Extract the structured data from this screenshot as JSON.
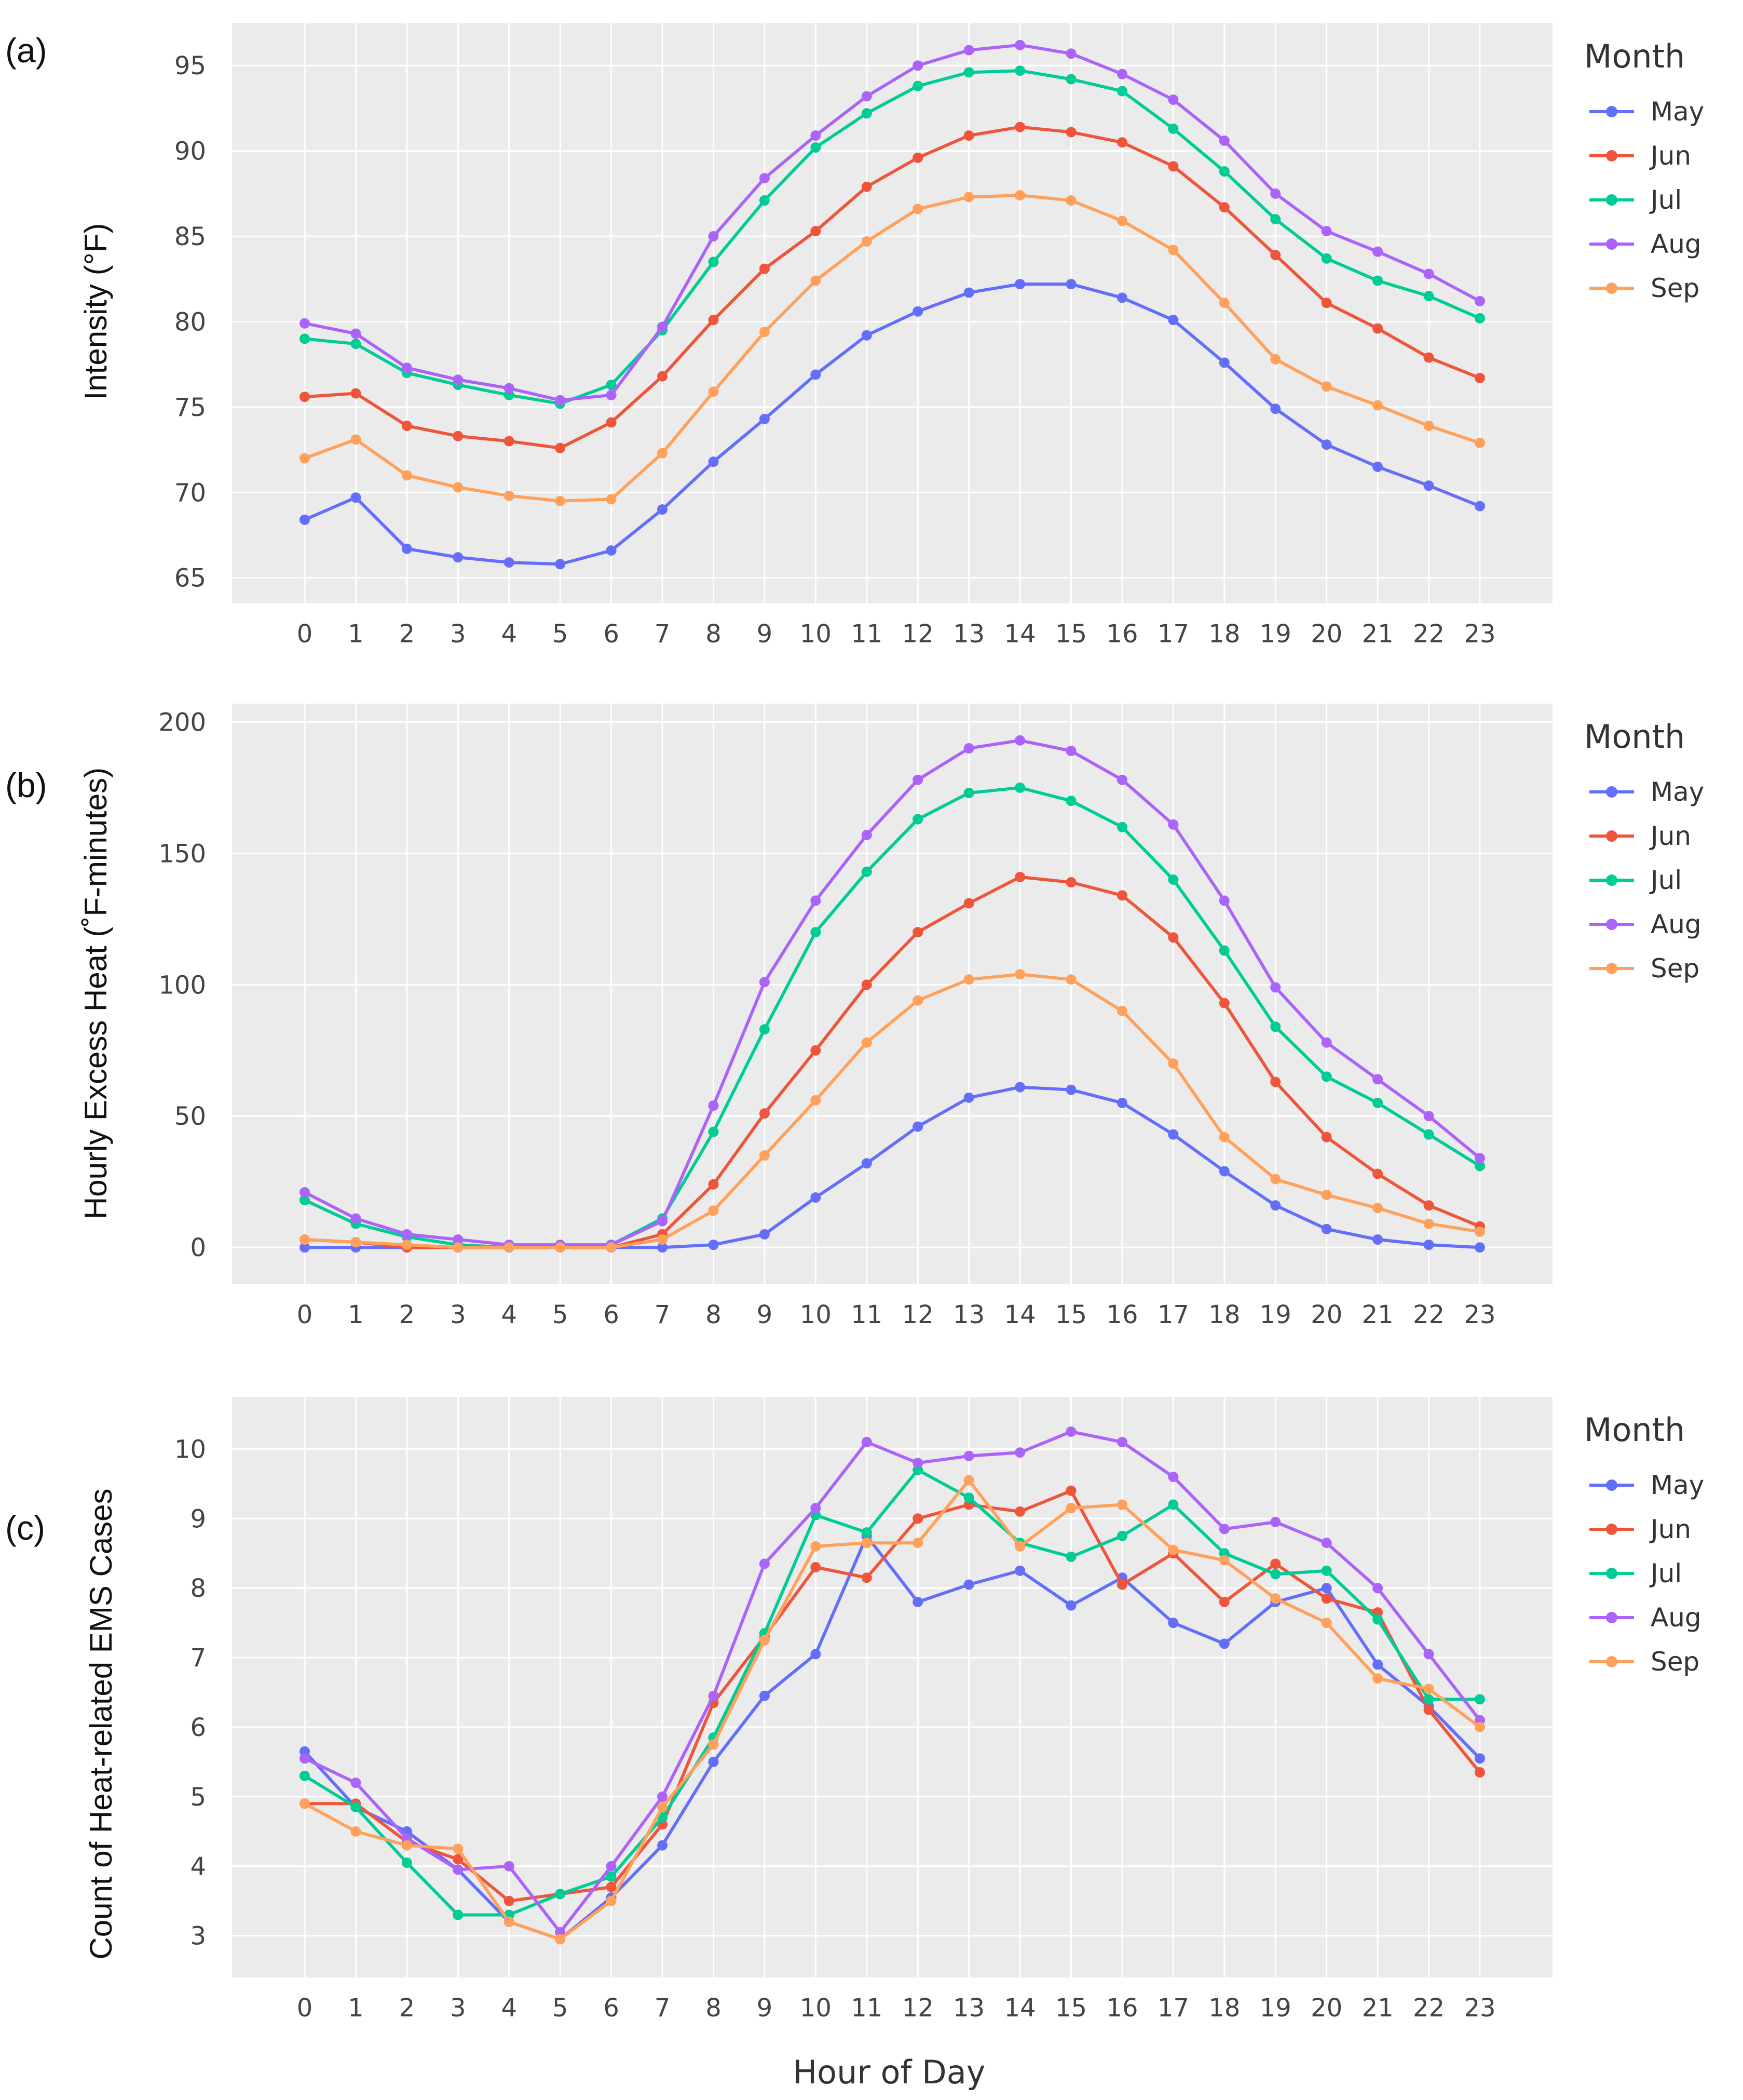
{
  "figure": {
    "xlabel": "Hour of Day",
    "series_colors": {
      "May": "#636efa",
      "Jun": "#ef553b",
      "Jul": "#00cc96",
      "Aug": "#ab63fa",
      "Sep": "#ffa15a"
    }
  },
  "chart_data": [
    {
      "panel_label": "(a)",
      "type": "line",
      "title": "",
      "xlabel": "",
      "ylabel": "Intensity (°F)",
      "x": [
        0,
        1,
        2,
        3,
        4,
        5,
        6,
        7,
        8,
        9,
        10,
        11,
        12,
        13,
        14,
        15,
        16,
        17,
        18,
        19,
        20,
        21,
        22,
        23
      ],
      "ylim": [
        63.5,
        97.5
      ],
      "yticks": [
        65,
        70,
        75,
        80,
        85,
        90,
        95
      ],
      "legend_title": "Month",
      "legend_position": "right",
      "series": [
        {
          "name": "May",
          "color": "#636efa",
          "values": [
            68.4,
            69.7,
            66.7,
            66.2,
            65.9,
            65.8,
            66.6,
            69.0,
            71.8,
            74.3,
            76.9,
            79.2,
            80.6,
            81.7,
            82.2,
            82.2,
            81.4,
            80.1,
            77.6,
            74.9,
            72.8,
            71.5,
            70.4,
            69.2
          ]
        },
        {
          "name": "Jun",
          "color": "#ef553b",
          "values": [
            75.6,
            75.8,
            73.9,
            73.3,
            73.0,
            72.6,
            74.1,
            76.8,
            80.1,
            83.1,
            85.3,
            87.9,
            89.6,
            90.9,
            91.4,
            91.1,
            90.5,
            89.1,
            86.7,
            83.9,
            81.1,
            79.6,
            77.9,
            76.7
          ]
        },
        {
          "name": "Jul",
          "color": "#00cc96",
          "values": [
            79.0,
            78.7,
            77.0,
            76.3,
            75.7,
            75.2,
            76.3,
            79.5,
            83.5,
            87.1,
            90.2,
            92.2,
            93.8,
            94.6,
            94.7,
            94.2,
            93.5,
            91.3,
            88.8,
            86.0,
            83.7,
            82.4,
            81.5,
            80.2
          ]
        },
        {
          "name": "Aug",
          "color": "#ab63fa",
          "values": [
            79.9,
            79.3,
            77.3,
            76.6,
            76.1,
            75.4,
            75.7,
            79.7,
            85.0,
            88.4,
            90.9,
            93.2,
            95.0,
            95.9,
            96.2,
            95.7,
            94.5,
            93.0,
            90.6,
            87.5,
            85.3,
            84.1,
            82.8,
            81.2
          ]
        },
        {
          "name": "Sep",
          "color": "#ffa15a",
          "values": [
            72.0,
            73.1,
            71.0,
            70.3,
            69.8,
            69.5,
            69.6,
            72.3,
            75.9,
            79.4,
            82.4,
            84.7,
            86.6,
            87.3,
            87.4,
            87.1,
            85.9,
            84.2,
            81.1,
            77.8,
            76.2,
            75.1,
            73.9,
            72.9
          ]
        }
      ]
    },
    {
      "panel_label": "(b)",
      "type": "line",
      "title": "",
      "xlabel": "",
      "ylabel": "Hourly Excess Heat (˚F-minutes)",
      "x": [
        0,
        1,
        2,
        3,
        4,
        5,
        6,
        7,
        8,
        9,
        10,
        11,
        12,
        13,
        14,
        15,
        16,
        17,
        18,
        19,
        20,
        21,
        22,
        23
      ],
      "ylim": [
        -14,
        207
      ],
      "yticks": [
        0,
        50,
        100,
        150,
        200
      ],
      "legend_title": "Month",
      "legend_position": "right",
      "series": [
        {
          "name": "May",
          "color": "#636efa",
          "values": [
            0,
            0,
            0,
            0,
            0,
            0,
            0,
            0,
            1,
            5,
            19,
            32,
            46,
            57,
            61,
            60,
            55,
            43,
            29,
            16,
            7,
            3,
            1,
            0
          ]
        },
        {
          "name": "Jun",
          "color": "#ef553b",
          "values": [
            3,
            2,
            0,
            0,
            0,
            0,
            0,
            5,
            24,
            51,
            75,
            100,
            120,
            131,
            141,
            139,
            134,
            118,
            93,
            63,
            42,
            28,
            16,
            8
          ]
        },
        {
          "name": "Jul",
          "color": "#00cc96",
          "values": [
            18,
            9,
            4,
            1,
            0,
            0,
            1,
            11,
            44,
            83,
            120,
            143,
            163,
            173,
            175,
            170,
            160,
            140,
            113,
            84,
            65,
            55,
            43,
            31
          ]
        },
        {
          "name": "Aug",
          "color": "#ab63fa",
          "values": [
            21,
            11,
            5,
            3,
            1,
            1,
            1,
            10,
            54,
            101,
            132,
            157,
            178,
            190,
            193,
            189,
            178,
            161,
            132,
            99,
            78,
            64,
            50,
            34
          ]
        },
        {
          "name": "Sep",
          "color": "#ffa15a",
          "values": [
            3,
            2,
            1,
            0,
            0,
            0,
            0,
            3,
            14,
            35,
            56,
            78,
            94,
            102,
            104,
            102,
            90,
            70,
            42,
            26,
            20,
            15,
            9,
            6
          ]
        }
      ]
    },
    {
      "panel_label": "(c)",
      "type": "line",
      "title": "",
      "xlabel": "Hour of Day",
      "ylabel": "Count of Heat-related EMS Cases",
      "x": [
        0,
        1,
        2,
        3,
        4,
        5,
        6,
        7,
        8,
        9,
        10,
        11,
        12,
        13,
        14,
        15,
        16,
        17,
        18,
        19,
        20,
        21,
        22,
        23
      ],
      "ylim": [
        2.4,
        10.75
      ],
      "yticks": [
        3,
        4,
        5,
        6,
        7,
        8,
        9,
        10
      ],
      "legend_title": "Month",
      "legend_position": "right",
      "series": [
        {
          "name": "May",
          "color": "#636efa",
          "values": [
            5.65,
            4.85,
            4.5,
            3.95,
            3.2,
            2.95,
            3.55,
            4.3,
            5.5,
            6.45,
            7.05,
            8.75,
            7.8,
            8.05,
            8.25,
            7.75,
            8.15,
            7.5,
            7.2,
            7.8,
            8.0,
            6.9,
            6.3,
            5.55
          ]
        },
        {
          "name": "Jun",
          "color": "#ef553b",
          "values": [
            4.9,
            4.9,
            4.35,
            4.1,
            3.5,
            3.6,
            3.7,
            4.6,
            6.35,
            7.3,
            8.3,
            8.15,
            9.0,
            9.2,
            9.1,
            9.4,
            8.05,
            8.5,
            7.8,
            8.35,
            7.85,
            7.65,
            6.25,
            5.35
          ]
        },
        {
          "name": "Jul",
          "color": "#00cc96",
          "values": [
            5.3,
            4.85,
            4.05,
            3.3,
            3.3,
            3.6,
            3.85,
            4.7,
            5.85,
            7.35,
            9.05,
            8.8,
            9.7,
            9.3,
            8.65,
            8.45,
            8.75,
            9.2,
            8.5,
            8.2,
            8.25,
            7.55,
            6.4,
            6.4
          ]
        },
        {
          "name": "Aug",
          "color": "#ab63fa",
          "values": [
            5.55,
            5.2,
            4.4,
            3.95,
            4.0,
            3.05,
            4.0,
            5.0,
            6.45,
            8.35,
            9.15,
            10.1,
            9.8,
            9.9,
            9.95,
            10.25,
            10.1,
            9.6,
            8.85,
            8.95,
            8.65,
            8.0,
            7.05,
            6.1
          ]
        },
        {
          "name": "Sep",
          "color": "#ffa15a",
          "values": [
            4.9,
            4.5,
            4.3,
            4.25,
            3.2,
            2.95,
            3.5,
            4.85,
            5.75,
            7.25,
            8.6,
            8.65,
            8.65,
            9.55,
            8.6,
            9.15,
            9.2,
            8.55,
            8.4,
            7.85,
            7.5,
            6.7,
            6.55,
            6.0
          ]
        }
      ]
    }
  ]
}
